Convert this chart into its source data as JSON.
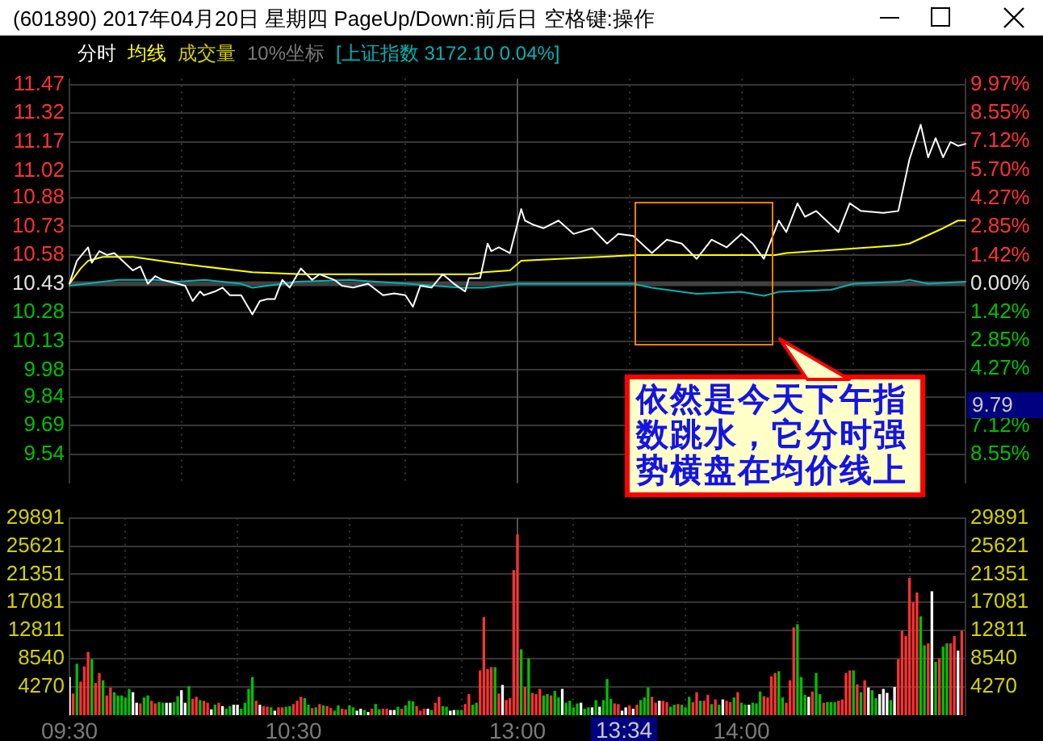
{
  "chart_data": [
    {
      "type": "line",
      "title": "(601890) 2017年04月20日 星期四 PageUp/Down:前后日 空格键:操作",
      "categories": [
        "09:30",
        null,
        null,
        null,
        null,
        null,
        null,
        null,
        null,
        null,
        null,
        null,
        null,
        null,
        null,
        null,
        null,
        null,
        null,
        null,
        null,
        null,
        null,
        null,
        null,
        null,
        null,
        null,
        null,
        null,
        null,
        null,
        null,
        null,
        null,
        null,
        null,
        null,
        null,
        null,
        null,
        null,
        null,
        null,
        null,
        null,
        null,
        null,
        null,
        null,
        null,
        null,
        null,
        null,
        null,
        null,
        null,
        null,
        null,
        null,
        "10:30",
        null,
        null,
        null,
        null,
        null,
        null,
        null,
        null,
        null,
        null,
        null,
        null,
        null,
        null,
        null,
        null,
        null,
        null,
        null,
        null,
        null,
        null,
        null,
        null,
        null,
        null,
        null,
        null,
        null,
        null,
        null,
        null,
        null,
        null,
        null,
        null,
        null,
        null,
        null,
        null,
        null,
        null,
        null,
        null,
        null,
        null,
        null,
        null,
        null,
        null,
        null,
        null,
        null,
        null,
        null,
        null,
        null,
        null,
        null,
        "13:00",
        null,
        null,
        null,
        null,
        null,
        null,
        null,
        null,
        null,
        null,
        null,
        null,
        null,
        null,
        null,
        null,
        null,
        null,
        null,
        null,
        null,
        null,
        null,
        null,
        null,
        null,
        null,
        null,
        null,
        null,
        null,
        null,
        null,
        null,
        null,
        null,
        null,
        null,
        null,
        null,
        null,
        null,
        null,
        null,
        null,
        null,
        null,
        null,
        null,
        null,
        null,
        null,
        null,
        null,
        null,
        null,
        null,
        null,
        null,
        "14:00",
        null,
        null,
        null,
        null,
        null,
        null,
        null,
        null,
        null,
        null,
        null,
        null,
        null,
        null,
        null,
        null,
        null,
        null,
        null,
        null,
        null,
        null,
        null,
        null,
        null,
        null,
        null,
        null,
        null,
        null,
        null,
        null,
        null,
        null,
        null,
        null,
        null,
        null,
        null,
        null,
        null,
        null,
        null,
        null,
        null,
        null,
        null,
        null,
        null,
        null,
        null,
        null,
        null,
        null,
        null,
        null,
        null,
        null,
        null,
        null
      ],
      "ylim": [
        9.39,
        11.5
      ],
      "yticks": [
        11.47,
        11.32,
        11.17,
        11.02,
        10.88,
        10.73,
        10.58,
        10.43,
        10.28,
        10.13,
        9.98,
        9.84,
        9.69,
        9.54
      ],
      "y2lim": [
        -9.97,
        10.26
      ],
      "y2ticks": [
        {
          "value": 9.97,
          "label": "9.97%"
        },
        {
          "value": 8.55,
          "label": "8.55%"
        },
        {
          "value": 7.12,
          "label": "7.12%"
        },
        {
          "value": 5.7,
          "label": "5.70%"
        },
        {
          "value": 4.27,
          "label": "4.27%"
        },
        {
          "value": 2.85,
          "label": "2.85%"
        },
        {
          "value": 1.42,
          "label": "1.42%"
        },
        {
          "value": 0,
          "label": "0.00%"
        },
        {
          "value": -1.42,
          "label": "1.42%"
        },
        {
          "value": -2.85,
          "label": "2.85%"
        },
        {
          "value": -4.27,
          "label": "4.27%"
        },
        {
          "value": -7.12,
          "label": "7.12%"
        },
        {
          "value": -8.55,
          "label": "8.55%"
        }
      ],
      "tick_labels": "y",
      "grid": true,
      "legend": "top left",
      "marker": "none",
      "ref_lines": [
        {
          "axis": "y",
          "value": 10.43,
          "color": "#404040"
        },
        {
          "axis": "x",
          "value": "13:00",
          "color": "#505050"
        }
      ],
      "annotations": [
        "10%坐标",
        "9.79",
        "依然是今天下午指数跳水，它分时强势横盘在均价线上"
      ],
      "series": [
        {
          "name": "分时",
          "color": "#ffffff",
          "values": [
            10.43,
            null,
            10.55,
            null,
            null,
            10.62,
            10.54,
            null,
            10.6,
            null,
            10.58,
            null,
            10.59,
            null,
            null,
            null,
            null,
            10.5,
            null,
            10.52,
            null,
            10.43,
            null,
            10.47,
            null,
            10.45,
            null,
            null,
            null,
            10.43,
            null,
            10.42,
            null,
            10.34,
            null,
            10.39,
            10.37,
            null,
            null,
            10.39,
            null,
            10.41,
            null,
            10.37,
            null,
            null,
            10.37,
            null,
            null,
            10.27,
            null,
            10.34,
            null,
            10.35,
            null,
            10.35,
            null,
            10.45,
            null,
            10.41,
            null,
            null,
            10.51,
            null,
            null,
            10.45,
            null,
            10.48,
            null,
            null,
            null,
            10.45,
            null,
            10.42,
            null,
            null,
            10.41,
            null,
            null,
            null,
            10.43,
            null,
            null,
            null,
            10.37,
            null,
            null,
            10.38,
            null,
            null,
            10.37,
            null,
            10.31,
            null,
            10.42,
            null,
            null,
            10.41,
            null,
            null,
            10.48,
            null,
            null,
            10.43,
            null,
            null,
            10.39,
            10.46,
            null,
            null,
            10.46,
            null,
            10.64,
            10.6,
            null,
            10.62,
            null,
            null,
            10.59,
            null,
            null,
            10.82,
            10.76,
            null,
            10.74,
            null,
            null,
            10.72,
            null,
            null,
            null,
            10.76,
            null,
            null,
            null,
            10.69,
            null,
            null,
            null,
            null,
            10.72,
            null,
            null,
            null,
            10.64,
            null,
            null,
            10.69,
            null,
            null,
            null,
            10.68,
            null,
            null,
            null,
            null,
            10.59,
            null,
            null,
            null,
            10.66,
            null,
            null,
            null,
            10.64,
            null,
            null,
            null,
            10.56,
            null,
            null,
            null,
            10.66,
            null,
            null,
            null,
            10.62,
            null,
            null,
            null,
            10.69,
            null,
            null,
            10.64,
            null,
            null,
            10.56,
            null,
            10.66,
            null,
            10.76,
            null,
            10.7,
            null,
            null,
            10.85,
            null,
            10.78,
            null,
            null,
            10.81,
            null,
            null,
            null,
            null,
            null,
            10.7,
            null,
            null,
            10.85,
            null,
            null,
            10.81,
            null,
            null,
            null,
            null,
            null,
            10.8,
            null,
            null,
            null,
            10.81,
            null,
            null,
            11.08,
            null,
            null,
            11.26,
            null,
            11.09,
            null,
            11.19,
            null,
            11.09,
            null,
            11.17,
            null,
            11.15,
            null,
            11.16
          ]
        },
        {
          "name": "均线",
          "color": "#ffff00",
          "values": [
            10.43,
            null,
            null,
            10.51,
            null,
            10.55,
            null,
            null,
            null,
            10.57,
            null,
            null,
            null,
            null,
            null,
            null,
            null,
            10.57,
            null,
            null,
            null,
            null,
            null,
            null,
            null,
            null,
            null,
            null,
            10.54,
            null,
            null,
            null,
            null,
            null,
            null,
            null,
            10.52,
            null,
            null,
            null,
            null,
            null,
            null,
            null,
            null,
            null,
            null,
            null,
            null,
            10.49,
            null,
            null,
            null,
            null,
            null,
            null,
            null,
            null,
            null,
            null,
            null,
            null,
            10.48,
            null,
            null,
            null,
            null,
            null,
            null,
            null,
            null,
            null,
            null,
            null,
            null,
            null,
            null,
            null,
            null,
            null,
            null,
            null,
            null,
            null,
            null,
            10.48,
            null,
            null,
            null,
            null,
            null,
            null,
            null,
            null,
            null,
            null,
            null,
            null,
            null,
            null,
            null,
            null,
            null,
            null,
            null,
            null,
            null,
            null,
            10.48,
            null,
            null,
            10.49,
            null,
            null,
            null,
            null,
            null,
            null,
            10.5,
            null,
            null,
            10.55,
            null,
            null,
            null,
            null,
            null,
            null,
            null,
            null,
            null,
            null,
            null,
            null,
            null,
            null,
            null,
            null,
            null,
            null,
            null,
            null,
            null,
            null,
            null,
            null,
            null,
            null,
            null,
            null,
            null,
            null,
            10.58,
            null,
            null,
            null,
            null,
            null,
            null,
            null,
            null,
            null,
            null,
            null,
            null,
            null,
            null,
            null,
            null,
            null,
            null,
            null,
            null,
            null,
            null,
            null,
            null,
            null,
            null,
            null,
            null,
            null,
            null,
            null,
            null,
            null,
            null,
            null,
            null,
            10.58,
            null,
            null,
            10.59,
            null,
            null,
            null,
            null,
            null,
            null,
            null,
            null,
            null,
            null,
            null,
            null,
            null,
            null,
            null,
            null,
            null,
            null,
            null,
            null,
            null,
            null,
            null,
            null,
            null,
            null,
            null,
            null,
            null,
            10.63,
            null,
            null,
            10.64,
            null,
            null,
            null,
            null,
            null,
            null,
            null,
            null,
            10.72,
            null,
            null,
            null,
            10.76,
            null,
            10.76
          ]
        },
        {
          "name": "[上证指数 3172.10 0.04%]",
          "color": "#00b4b4",
          "axis": "y2",
          "values": [
            -0.1,
            null,
            null,
            null,
            null,
            null,
            null,
            null,
            null,
            null,
            null,
            null,
            null,
            0.2,
            null,
            null,
            null,
            null,
            null,
            null,
            null,
            null,
            null,
            0.2,
            null,
            null,
            null,
            null,
            null,
            0.1,
            null,
            null,
            null,
            null,
            null,
            null,
            0.2,
            null,
            null,
            null,
            null,
            null,
            null,
            null,
            null,
            null,
            0,
            null,
            null,
            -0.2,
            null,
            null,
            null,
            null,
            null,
            null,
            null,
            null,
            null,
            null,
            null,
            0.1,
            null,
            null,
            null,
            null,
            null,
            null,
            null,
            null,
            null,
            null,
            null,
            null,
            null,
            0.2,
            null,
            null,
            null,
            null,
            null,
            null,
            0.1,
            null,
            null,
            null,
            null,
            null,
            null,
            null,
            null,
            0,
            null,
            null,
            null,
            null,
            null,
            null,
            null,
            null,
            null,
            null,
            null,
            null,
            null,
            -0.2,
            null,
            null,
            null,
            null,
            null,
            -0.2,
            null,
            null,
            null,
            null,
            null,
            null,
            null,
            null,
            0,
            null,
            null,
            null,
            null,
            null,
            null,
            null,
            null,
            null,
            null,
            null,
            null,
            null,
            null,
            null,
            null,
            null,
            null,
            null,
            null,
            null,
            null,
            null,
            null,
            null,
            null,
            null,
            null,
            null,
            null,
            0,
            null,
            null,
            null,
            null,
            -0.2,
            null,
            null,
            null,
            null,
            null,
            null,
            null,
            null,
            null,
            null,
            null,
            -0.5,
            null,
            null,
            null,
            null,
            null,
            null,
            null,
            null,
            null,
            null,
            null,
            -0.4,
            null,
            null,
            null,
            null,
            null,
            -0.6,
            null,
            null,
            null,
            -0.4,
            null,
            null,
            null,
            null,
            null,
            null,
            null,
            null,
            null,
            null,
            null,
            null,
            null,
            -0.3,
            null,
            null,
            null,
            null,
            null,
            0,
            null,
            null,
            null,
            null,
            null,
            null,
            null,
            null,
            null,
            null,
            null,
            0.1,
            null,
            null,
            0.2,
            null,
            null,
            null,
            null,
            0,
            null,
            null,
            null,
            null,
            null,
            null,
            null,
            null,
            null,
            0.1
          ]
        }
      ]
    },
    {
      "type": "bar",
      "categories": [
        "09:30",
        null,
        null,
        null,
        null,
        null,
        null,
        null,
        null,
        null,
        null,
        null,
        null,
        null,
        null,
        null,
        null,
        null,
        null,
        null,
        null,
        null,
        null,
        null,
        null,
        null,
        null,
        null,
        null,
        null,
        null,
        null,
        null,
        null,
        null,
        null,
        null,
        null,
        null,
        null,
        null,
        null,
        null,
        null,
        null,
        null,
        null,
        null,
        null,
        null,
        null,
        null,
        null,
        null,
        null,
        null,
        null,
        null,
        null,
        null,
        "10:30",
        null,
        null,
        null,
        null,
        null,
        null,
        null,
        null,
        null,
        null,
        null,
        null,
        null,
        null,
        null,
        null,
        null,
        null,
        null,
        null,
        null,
        null,
        null,
        null,
        null,
        null,
        null,
        null,
        null,
        null,
        null,
        null,
        null,
        null,
        null,
        null,
        null,
        null,
        null,
        null,
        null,
        null,
        null,
        null,
        null,
        null,
        null,
        null,
        null,
        null,
        null,
        null,
        null,
        null,
        null,
        null,
        null,
        null,
        null,
        "13:00",
        null,
        null,
        null,
        null,
        null,
        null,
        null,
        null,
        null,
        null,
        null,
        null,
        null,
        null,
        null,
        null,
        null,
        null,
        null,
        null,
        null,
        null,
        null,
        null,
        null,
        null,
        null,
        null,
        null,
        null,
        null,
        null,
        null,
        null,
        null,
        null,
        null,
        null,
        null,
        null,
        null,
        null,
        null,
        null,
        null,
        null,
        null,
        null,
        null,
        null,
        null,
        null,
        null,
        null,
        null,
        null,
        null,
        null,
        null,
        "14:00",
        null,
        null,
        null,
        null,
        null,
        null,
        null,
        null,
        null,
        null,
        null,
        null,
        null,
        null,
        null,
        null,
        null,
        null,
        null,
        null,
        null,
        null,
        null,
        null,
        null,
        null,
        null,
        null,
        null,
        null,
        null,
        null,
        null,
        null,
        null,
        null,
        null,
        null,
        null,
        null,
        null,
        null,
        null,
        null,
        null,
        null,
        null,
        null,
        null,
        null,
        null,
        null,
        null,
        null,
        null,
        null,
        null,
        null,
        null,
        null
      ],
      "ylim": [
        0,
        29891
      ],
      "yticks": [
        4270,
        8540,
        12811,
        17081,
        21351,
        25621,
        29891
      ],
      "y2lim": [
        0,
        29891
      ],
      "y2ticks": [
        4270,
        8540,
        12811,
        17081,
        21351,
        25621,
        29891
      ],
      "grid": true,
      "legend": "top left",
      "ref_lines": [
        {
          "axis": "x",
          "value": "13:00",
          "color": "#505050"
        }
      ],
      "annotations": [
        "13:34"
      ],
      "series": [
        {
          "name": "成交量",
          "values": [
            5700,
            3200,
            7700,
            5000,
            7300,
            9500,
            8400,
            4800,
            6300,
            5200,
            2900,
            4100,
            3400,
            2900,
            2900,
            2600,
            3900,
            3400,
            1800,
            1700,
            2600,
            2900,
            2100,
            1700,
            1900,
            1800,
            1800,
            1800,
            1900,
            2800,
            3700,
            1800,
            4300,
            2400,
            2700,
            2200,
            2100,
            1800,
            800,
            1500,
            1800,
            1300,
            900,
            1300,
            1500,
            1500,
            900,
            1800,
            3900,
            5700,
            2100,
            1500,
            1300,
            1200,
            1100,
            600,
            1100,
            1100,
            1200,
            1300,
            1600,
            2100,
            2700,
            2500,
            1500,
            1000,
            1100,
            1600,
            1400,
            1300,
            1000,
            600,
            1400,
            900,
            800,
            1400,
            1100,
            600,
            900,
            700,
            400,
            900,
            1600,
            800,
            900,
            900,
            700,
            700,
            1200,
            900,
            1400,
            2100,
            2000,
            1300,
            600,
            900,
            900,
            700,
            1800,
            2700,
            1300,
            1200,
            600,
            700,
            700,
            700,
            1600,
            3100,
            1500,
            1800,
            6700,
            14800,
            6900,
            7200,
            7200,
            3200,
            4500,
            2200,
            2500,
            21900,
            27300,
            9900,
            4200,
            8500,
            3300,
            3100,
            3900,
            2900,
            3100,
            2900,
            3600,
            2600,
            3900,
            1800,
            2100,
            1100,
            1700,
            1800,
            900,
            1100,
            1100,
            2200,
            1200,
            2200,
            5400,
            2400,
            1700,
            1600,
            600,
            1100,
            1400,
            900,
            1500,
            2200,
            2600,
            4100,
            2700,
            1800,
            2100,
            2100,
            1900,
            1200,
            1500,
            1600,
            1500,
            1100,
            2700,
            1900,
            3400,
            2100,
            2100,
            3000,
            1600,
            2300,
            1500,
            2300,
            2100,
            1900,
            2600,
            3400,
            1800,
            1500,
            1500,
            1800,
            1700,
            3500,
            2800,
            2600,
            5800,
            6300,
            6600,
            2600,
            1800,
            5200,
            13200,
            13700,
            5700,
            3000,
            2700,
            3500,
            6300,
            3100,
            1800,
            1900,
            1900,
            1900,
            2100,
            2300,
            6300,
            6700,
            6700,
            4600,
            3400,
            5200,
            4100,
            3700,
            2500,
            3100,
            3900,
            3300,
            2200,
            4200,
            8400,
            12700,
            11900,
            20700,
            17000,
            18500,
            14900,
            10500,
            10800,
            18700,
            8000,
            8500,
            10300,
            10800,
            10800,
            11900,
            9700,
            12700,
            null
          ],
          "colors": [
            "#ffffff",
            "#ff3232",
            "#00c000",
            "#ff3232",
            "#ff3232",
            "#ff3232",
            "#00c000",
            "#ff3232",
            "#ff3232",
            "#00c000",
            "#ff3232",
            "#ff3232",
            "#00c000",
            "#00c000",
            "#00c000",
            "#00c000",
            "#00c000",
            "#ffffff",
            "#ffffff",
            "#ff3232",
            "#00c000",
            "#00c000",
            "#ff3232",
            "#ff3232",
            "#00c000",
            "#00c000",
            "#ffffff",
            "#ffffff",
            "#00c000",
            "#00c000",
            "#ffffff",
            "#ffffff",
            "#00c000",
            "#ff3232",
            "#ff3232",
            "#00c000",
            "#ff3232",
            "#ff3232",
            "#ffffff",
            "#00c000",
            "#ff3232",
            "#ffffff",
            "#00c000",
            "#00c000",
            "#ffffff",
            "#ffffff",
            "#00c000",
            "#00c000",
            "#00c000",
            "#00c000",
            "#ff3232",
            "#ffffff",
            "#ff3232",
            "#ff3232",
            "#00c000",
            "#ffffff",
            "#ff3232",
            "#ff3232",
            "#00c000",
            "#00c000",
            "#ff3232",
            "#ff3232",
            "#ff3232",
            "#00c000",
            "#00c000",
            "#ff3232",
            "#00c000",
            "#ff3232",
            "#00c000",
            "#ff3232",
            "#ff3232",
            "#00c000",
            "#00c000",
            "#ff3232",
            "#ff3232",
            "#00c000",
            "#00c000",
            "#ffffff",
            "#ffffff",
            "#00c000",
            "#ffffff",
            "#ff3232",
            "#00c000",
            "#00c000",
            "#ff3232",
            "#ff3232",
            "#ffffff",
            "#ffffff",
            "#00c000",
            "#ff3232",
            "#00c000",
            "#00c000",
            "#00c000",
            "#ff3232",
            "#ff3232",
            "#ff3232",
            "#ffffff",
            "#00c000",
            "#ff3232",
            "#ff3232",
            "#00c000",
            "#00c000",
            "#ffffff",
            "#ffffff",
            "#00c000",
            "#00c000",
            "#ff3232",
            "#ff3232",
            "#00c000",
            "#00c000",
            "#ff3232",
            "#ff3232",
            "#ff3232",
            "#ff3232",
            "#00c000",
            "#ff3232",
            "#ffffff",
            "#ff3232",
            "#ff3232",
            "#ff3232",
            "#ff3232",
            "#00c000",
            "#ff3232",
            "#00c000",
            "#ff3232",
            "#ff3232",
            "#ff3232",
            "#00c000",
            "#00c000",
            "#ff3232",
            "#00c000",
            "#00c000",
            "#ffffff",
            "#00c000",
            "#00c000",
            "#00c000",
            "#00c000",
            "#ffffff",
            "#00c000",
            "#00c000",
            "#ffffff",
            "#00c000",
            "#ffffff",
            "#00c000",
            "#00c000",
            "#00c000",
            "#ff3232",
            "#ff3232",
            "#ffffff",
            "#ffffff",
            "#ff3232",
            "#ffffff",
            "#ff3232",
            "#00c000",
            "#00c000",
            "#00c000",
            "#ff3232",
            "#ff3232",
            "#ffffff",
            "#ff3232",
            "#ff3232",
            "#00c000",
            "#00c000",
            "#ff3232",
            "#00c000",
            "#00c000",
            "#00c000",
            "#ff3232",
            "#ff3232",
            "#00c000",
            "#ff3232",
            "#ff3232",
            "#00c000",
            "#ff3232",
            "#00c000",
            "#ffffff",
            "#ff3232",
            "#ff3232",
            "#00c000",
            "#ff3232",
            "#00c000",
            "#00c000",
            "#ffffff",
            "#00c000",
            "#00c000",
            "#00c000",
            "#ff3232",
            "#ff3232",
            "#ff3232",
            "#ff3232",
            "#00c000",
            "#00c000",
            "#ff3232",
            "#ff3232",
            "#ff3232",
            "#00c000",
            "#00c000",
            "#00c000",
            "#ffffff",
            "#ff3232",
            "#00c000",
            "#00c000",
            "#ff3232",
            "#00c000",
            "#00c000",
            "#00c000",
            "#ff3232",
            "#ff3232",
            "#ff3232",
            "#ff3232",
            "#00c000",
            "#ff3232",
            "#00c000",
            "#ff3232",
            "#ffffff",
            "#00c000",
            "#00c000",
            "#ffffff",
            "#ffffff",
            "#ffffff",
            "#00c000",
            "#ffffff",
            "#ff3232",
            "#ff3232",
            "#ff3232",
            "#ff3232",
            "#ff3232",
            "#ff3232",
            "#00c000",
            "#00c000",
            "#ff3232",
            "#ffffff",
            "#00c000",
            "#ff3232",
            "#00c000",
            "#00c000",
            "#ff3232",
            "#ff3232",
            "#ffffff",
            "#ff3232",
            "#ff3232"
          ]
        }
      ]
    }
  ]
}
